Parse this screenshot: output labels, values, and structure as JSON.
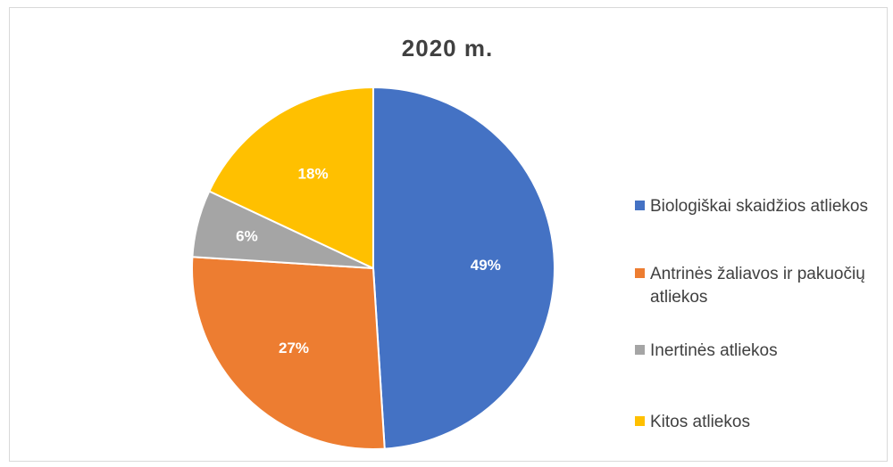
{
  "chart_data": {
    "type": "pie",
    "title": "2020  m.",
    "categories": [
      "Biologiškai skaidžios atliekos",
      "Antrinės žaliavos ir pakuočių atliekos",
      "Inertinės atliekos",
      "Kitos atliekos"
    ],
    "values": [
      49,
      27,
      6,
      18
    ],
    "labels": [
      "49%",
      "27%",
      "6%",
      "18%"
    ],
    "colors": [
      "#4472c4",
      "#ed7d31",
      "#a5a5a5",
      "#ffc000"
    ],
    "legend_placement": "right"
  }
}
